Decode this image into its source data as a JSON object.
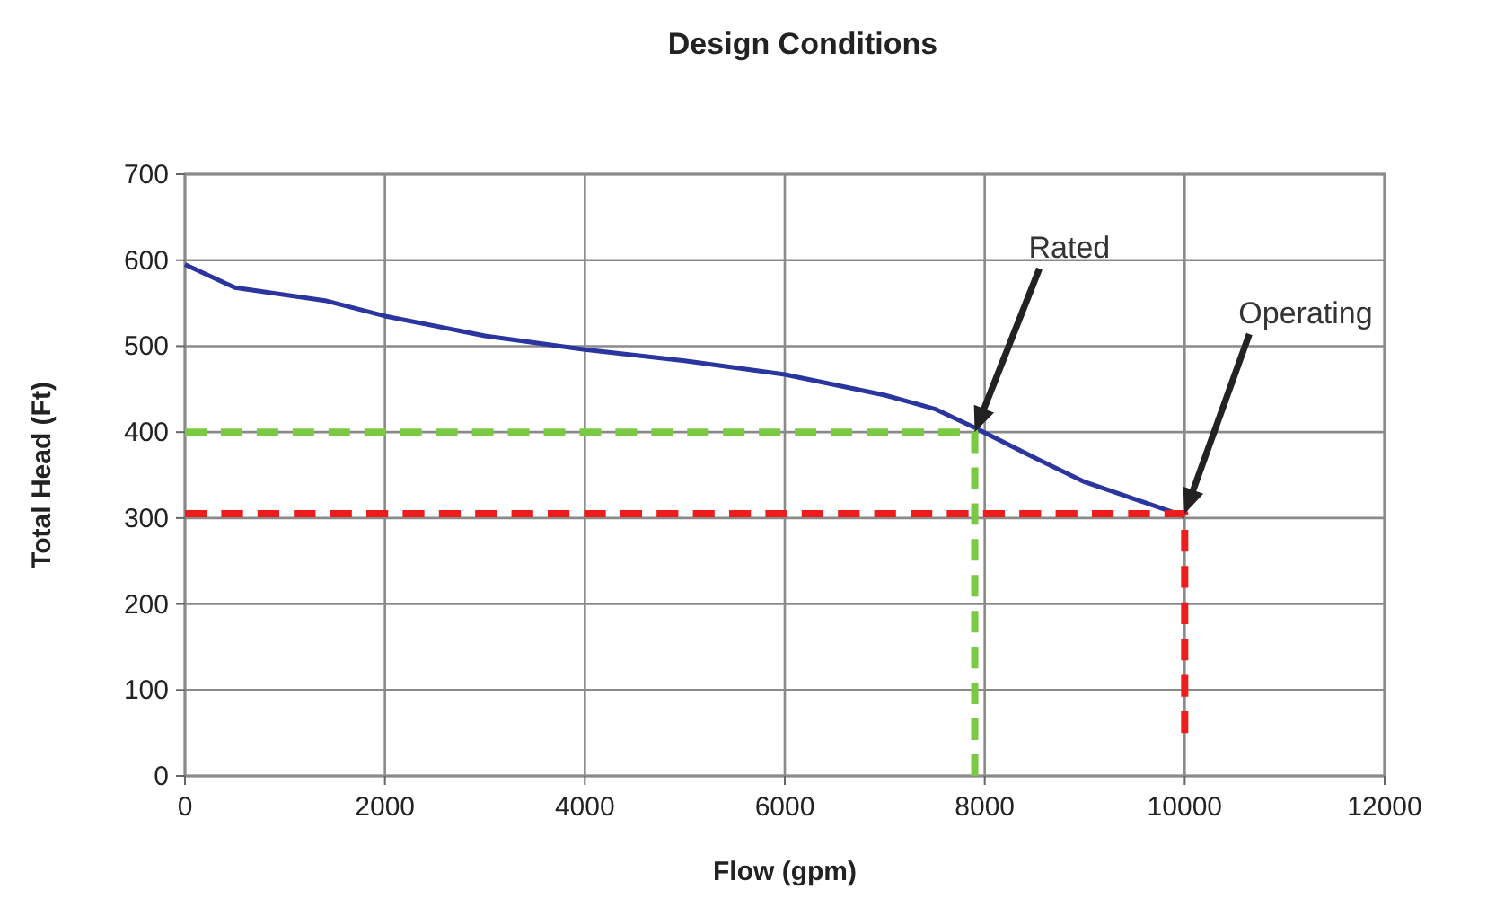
{
  "chart_data": {
    "type": "line",
    "title": "Design Conditions",
    "xlabel": "Flow (gpm)",
    "ylabel": "Total Head (Ft)",
    "xlim": [
      0,
      12000
    ],
    "xticks": [
      0,
      2000,
      4000,
      6000,
      8000,
      10000,
      12000
    ],
    "ylim": [
      0,
      700
    ],
    "yticks": [
      0,
      100,
      200,
      300,
      400,
      500,
      600,
      700
    ],
    "grid": true,
    "series": [
      {
        "color": "#2b35a0",
        "line_style": "solid",
        "x": [
          0,
          500,
          1400,
          2000,
          3000,
          4000,
          5000,
          6000,
          7000,
          7500,
          7900,
          8500,
          9000,
          10000
        ],
        "values": [
          595,
          568,
          553,
          535,
          512,
          496,
          483,
          467,
          443,
          427,
          405,
          370,
          342,
          302
        ]
      },
      {
        "color": "#7ac943",
        "line_style": "dashed",
        "x": [
          0,
          7900,
          7900
        ],
        "values": [
          400,
          400,
          0
        ]
      },
      {
        "color": "#ee1c1c",
        "line_style": "dashed",
        "x": [
          0,
          10000,
          10000
        ],
        "values": [
          305,
          305,
          50
        ]
      }
    ],
    "annotations": [
      "Rated",
      "Operating"
    ]
  }
}
